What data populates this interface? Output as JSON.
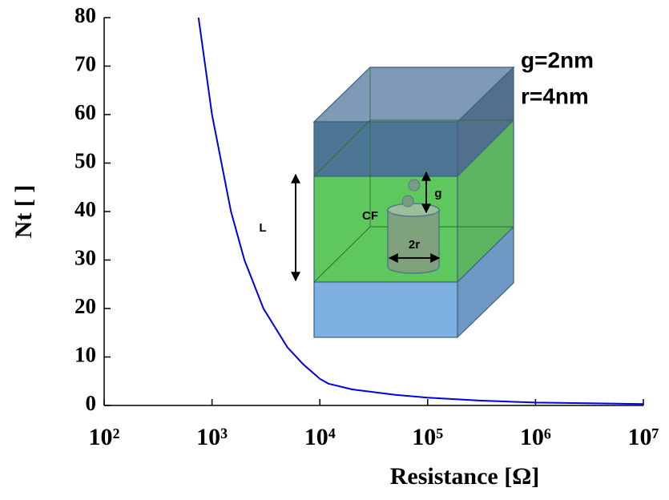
{
  "chart_data": {
    "type": "line",
    "xlabel": "Resistance [Ω]",
    "ylabel": "Nt [ ]",
    "log_x": true,
    "x": [
      750,
      1000,
      1500,
      2000,
      3000,
      5000,
      7000,
      10000,
      12000,
      20000,
      50000,
      100000,
      300000,
      1000000,
      10000000
    ],
    "series": [
      {
        "name": "Nt",
        "color": "#0000e6",
        "values": [
          80,
          60,
          40,
          30,
          20,
          12,
          8.5,
          5.5,
          4.5,
          3.3,
          2.2,
          1.6,
          1,
          0.6,
          0.3
        ]
      }
    ],
    "xlim": [
      100,
      10000000
    ],
    "xticks": [
      {
        "value": 100,
        "label": "10²"
      },
      {
        "value": 1000,
        "label": "10³"
      },
      {
        "value": 10000,
        "label": "10⁴"
      },
      {
        "value": 100000,
        "label": "10⁵"
      },
      {
        "value": 1000000,
        "label": "10⁶"
      },
      {
        "value": 10000000,
        "label": "10⁷"
      }
    ],
    "ylim": [
      0,
      80
    ],
    "yticks": [
      0,
      10,
      20,
      30,
      40,
      50,
      60,
      70,
      80
    ],
    "annotations": [
      "g=2nm",
      "r=4nm"
    ],
    "inset_labels": [
      "L",
      "g",
      "CF",
      "2r"
    ]
  }
}
